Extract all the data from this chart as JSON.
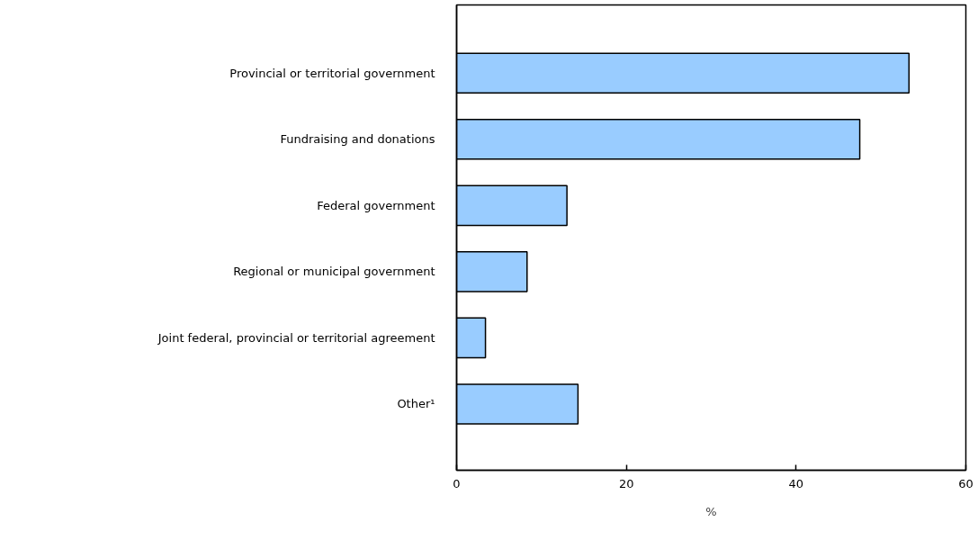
{
  "chart_data": {
    "type": "bar",
    "orientation": "horizontal",
    "xlabel": "%",
    "categories": [
      "Provincial or territorial government",
      "Fundraising and donations",
      "Federal government",
      "Regional or municipal government",
      "Joint federal, provincial or territorial agreement",
      "Other¹"
    ],
    "values": [
      53.3,
      47.5,
      13.0,
      8.3,
      3.4,
      14.3
    ],
    "color": "#99ccff",
    "xlim": [
      0,
      60
    ],
    "xticks": [
      0,
      20,
      40,
      60
    ],
    "grid": false
  }
}
